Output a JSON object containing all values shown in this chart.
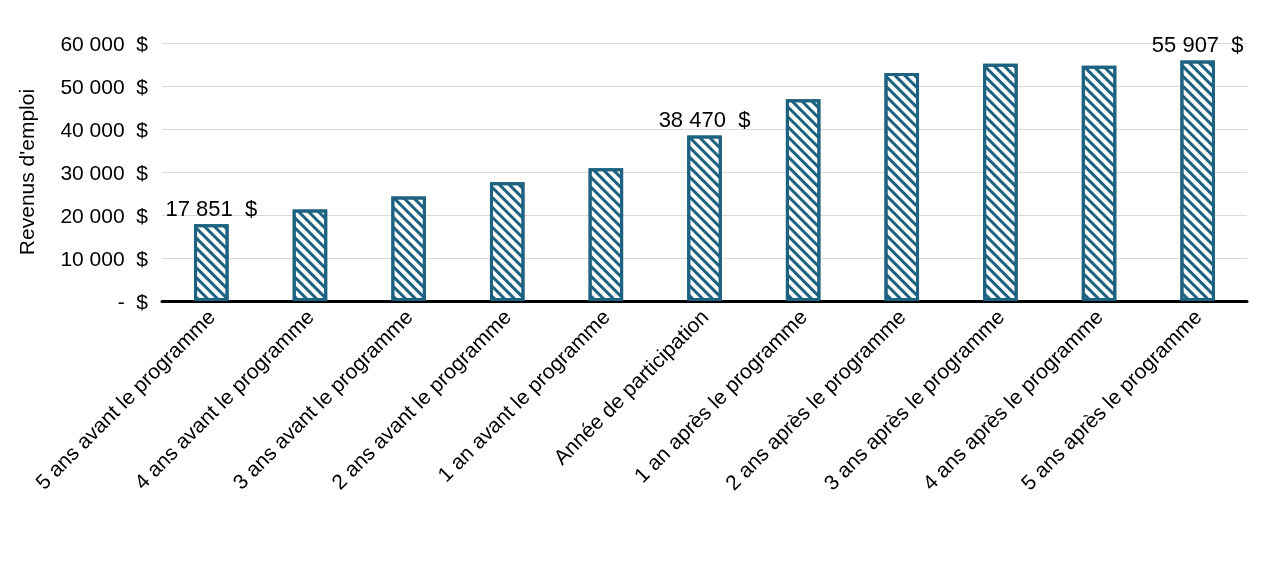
{
  "chart_data": {
    "type": "bar",
    "ylabel": "Revenus d'emploi",
    "categories": [
      "5 ans avant le programme",
      "4 ans avant le programme",
      "3 ans avant le programme",
      "2 ans avant le programme",
      "1 an avant le programme",
      "Année de participation",
      "1 an après le programme",
      "2 ans après le programme",
      "3 ans après le programme",
      "4 ans après le programme",
      "5 ans après le programme"
    ],
    "values": [
      17851,
      21300,
      24300,
      27600,
      30900,
      38470,
      46900,
      53000,
      55200,
      54700,
      55907
    ],
    "value_labels": [
      "17 851  $",
      null,
      null,
      null,
      null,
      "38 470  $",
      null,
      null,
      null,
      null,
      "55 907  $"
    ],
    "color": "#1d6280",
    "ylim": [
      0,
      60000
    ],
    "yticks": [
      {
        "value": 0,
        "label": "-  $"
      },
      {
        "value": 10000,
        "label": "10 000  $"
      },
      {
        "value": 20000,
        "label": "20 000  $"
      },
      {
        "value": 30000,
        "label": "30 000  $"
      },
      {
        "value": 40000,
        "label": "40 000  $"
      },
      {
        "value": 50000,
        "label": "50 000  $"
      },
      {
        "value": 60000,
        "label": "60 000  $"
      }
    ],
    "grid": "y"
  }
}
